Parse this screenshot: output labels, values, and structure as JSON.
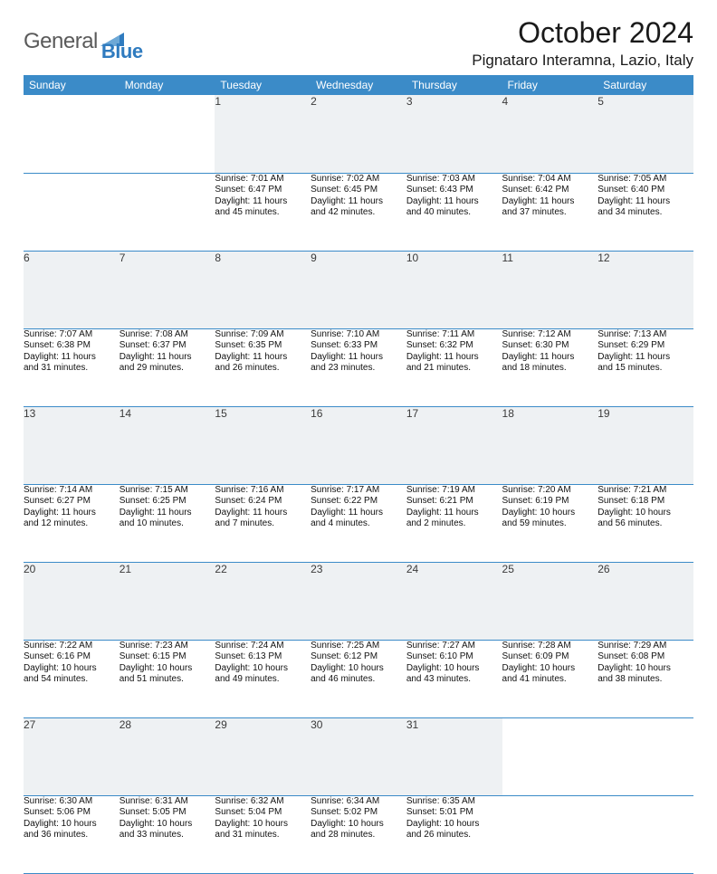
{
  "brand": {
    "general": "General",
    "blue": "Blue"
  },
  "title": "October 2024",
  "location": "Pignataro Interamna, Lazio, Italy",
  "colors": {
    "header_bg": "#3b8bc8",
    "header_text": "#ffffff",
    "daynum_bg": "#eef1f3",
    "rule": "#3b8bc8",
    "logo_gray": "#5a5a5a",
    "logo_blue": "#2f7bbf"
  },
  "typography": {
    "title_fontsize": 32,
    "location_fontsize": 17,
    "dayheader_fontsize": 12,
    "daynum_fontsize": 12,
    "body_fontsize": 10
  },
  "day_headers": [
    "Sunday",
    "Monday",
    "Tuesday",
    "Wednesday",
    "Thursday",
    "Friday",
    "Saturday"
  ],
  "weeks": [
    [
      null,
      null,
      {
        "n": "1",
        "sr": "Sunrise: 7:01 AM",
        "ss": "Sunset: 6:47 PM",
        "dl1": "Daylight: 11 hours",
        "dl2": "and 45 minutes."
      },
      {
        "n": "2",
        "sr": "Sunrise: 7:02 AM",
        "ss": "Sunset: 6:45 PM",
        "dl1": "Daylight: 11 hours",
        "dl2": "and 42 minutes."
      },
      {
        "n": "3",
        "sr": "Sunrise: 7:03 AM",
        "ss": "Sunset: 6:43 PM",
        "dl1": "Daylight: 11 hours",
        "dl2": "and 40 minutes."
      },
      {
        "n": "4",
        "sr": "Sunrise: 7:04 AM",
        "ss": "Sunset: 6:42 PM",
        "dl1": "Daylight: 11 hours",
        "dl2": "and 37 minutes."
      },
      {
        "n": "5",
        "sr": "Sunrise: 7:05 AM",
        "ss": "Sunset: 6:40 PM",
        "dl1": "Daylight: 11 hours",
        "dl2": "and 34 minutes."
      }
    ],
    [
      {
        "n": "6",
        "sr": "Sunrise: 7:07 AM",
        "ss": "Sunset: 6:38 PM",
        "dl1": "Daylight: 11 hours",
        "dl2": "and 31 minutes."
      },
      {
        "n": "7",
        "sr": "Sunrise: 7:08 AM",
        "ss": "Sunset: 6:37 PM",
        "dl1": "Daylight: 11 hours",
        "dl2": "and 29 minutes."
      },
      {
        "n": "8",
        "sr": "Sunrise: 7:09 AM",
        "ss": "Sunset: 6:35 PM",
        "dl1": "Daylight: 11 hours",
        "dl2": "and 26 minutes."
      },
      {
        "n": "9",
        "sr": "Sunrise: 7:10 AM",
        "ss": "Sunset: 6:33 PM",
        "dl1": "Daylight: 11 hours",
        "dl2": "and 23 minutes."
      },
      {
        "n": "10",
        "sr": "Sunrise: 7:11 AM",
        "ss": "Sunset: 6:32 PM",
        "dl1": "Daylight: 11 hours",
        "dl2": "and 21 minutes."
      },
      {
        "n": "11",
        "sr": "Sunrise: 7:12 AM",
        "ss": "Sunset: 6:30 PM",
        "dl1": "Daylight: 11 hours",
        "dl2": "and 18 minutes."
      },
      {
        "n": "12",
        "sr": "Sunrise: 7:13 AM",
        "ss": "Sunset: 6:29 PM",
        "dl1": "Daylight: 11 hours",
        "dl2": "and 15 minutes."
      }
    ],
    [
      {
        "n": "13",
        "sr": "Sunrise: 7:14 AM",
        "ss": "Sunset: 6:27 PM",
        "dl1": "Daylight: 11 hours",
        "dl2": "and 12 minutes."
      },
      {
        "n": "14",
        "sr": "Sunrise: 7:15 AM",
        "ss": "Sunset: 6:25 PM",
        "dl1": "Daylight: 11 hours",
        "dl2": "and 10 minutes."
      },
      {
        "n": "15",
        "sr": "Sunrise: 7:16 AM",
        "ss": "Sunset: 6:24 PM",
        "dl1": "Daylight: 11 hours",
        "dl2": "and 7 minutes."
      },
      {
        "n": "16",
        "sr": "Sunrise: 7:17 AM",
        "ss": "Sunset: 6:22 PM",
        "dl1": "Daylight: 11 hours",
        "dl2": "and 4 minutes."
      },
      {
        "n": "17",
        "sr": "Sunrise: 7:19 AM",
        "ss": "Sunset: 6:21 PM",
        "dl1": "Daylight: 11 hours",
        "dl2": "and 2 minutes."
      },
      {
        "n": "18",
        "sr": "Sunrise: 7:20 AM",
        "ss": "Sunset: 6:19 PM",
        "dl1": "Daylight: 10 hours",
        "dl2": "and 59 minutes."
      },
      {
        "n": "19",
        "sr": "Sunrise: 7:21 AM",
        "ss": "Sunset: 6:18 PM",
        "dl1": "Daylight: 10 hours",
        "dl2": "and 56 minutes."
      }
    ],
    [
      {
        "n": "20",
        "sr": "Sunrise: 7:22 AM",
        "ss": "Sunset: 6:16 PM",
        "dl1": "Daylight: 10 hours",
        "dl2": "and 54 minutes."
      },
      {
        "n": "21",
        "sr": "Sunrise: 7:23 AM",
        "ss": "Sunset: 6:15 PM",
        "dl1": "Daylight: 10 hours",
        "dl2": "and 51 minutes."
      },
      {
        "n": "22",
        "sr": "Sunrise: 7:24 AM",
        "ss": "Sunset: 6:13 PM",
        "dl1": "Daylight: 10 hours",
        "dl2": "and 49 minutes."
      },
      {
        "n": "23",
        "sr": "Sunrise: 7:25 AM",
        "ss": "Sunset: 6:12 PM",
        "dl1": "Daylight: 10 hours",
        "dl2": "and 46 minutes."
      },
      {
        "n": "24",
        "sr": "Sunrise: 7:27 AM",
        "ss": "Sunset: 6:10 PM",
        "dl1": "Daylight: 10 hours",
        "dl2": "and 43 minutes."
      },
      {
        "n": "25",
        "sr": "Sunrise: 7:28 AM",
        "ss": "Sunset: 6:09 PM",
        "dl1": "Daylight: 10 hours",
        "dl2": "and 41 minutes."
      },
      {
        "n": "26",
        "sr": "Sunrise: 7:29 AM",
        "ss": "Sunset: 6:08 PM",
        "dl1": "Daylight: 10 hours",
        "dl2": "and 38 minutes."
      }
    ],
    [
      {
        "n": "27",
        "sr": "Sunrise: 6:30 AM",
        "ss": "Sunset: 5:06 PM",
        "dl1": "Daylight: 10 hours",
        "dl2": "and 36 minutes."
      },
      {
        "n": "28",
        "sr": "Sunrise: 6:31 AM",
        "ss": "Sunset: 5:05 PM",
        "dl1": "Daylight: 10 hours",
        "dl2": "and 33 minutes."
      },
      {
        "n": "29",
        "sr": "Sunrise: 6:32 AM",
        "ss": "Sunset: 5:04 PM",
        "dl1": "Daylight: 10 hours",
        "dl2": "and 31 minutes."
      },
      {
        "n": "30",
        "sr": "Sunrise: 6:34 AM",
        "ss": "Sunset: 5:02 PM",
        "dl1": "Daylight: 10 hours",
        "dl2": "and 28 minutes."
      },
      {
        "n": "31",
        "sr": "Sunrise: 6:35 AM",
        "ss": "Sunset: 5:01 PM",
        "dl1": "Daylight: 10 hours",
        "dl2": "and 26 minutes."
      },
      null,
      null
    ]
  ]
}
